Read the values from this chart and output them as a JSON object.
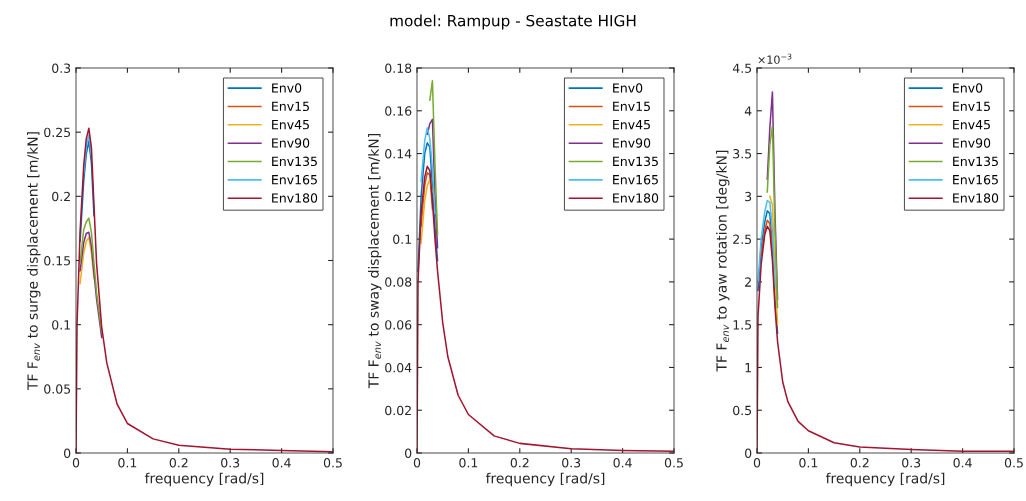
{
  "chart_data": [
    {
      "type": "line",
      "xlabel": "frequency [rad/s]",
      "ylabel": "TF F$_{env}$ to surge displacement [m/kN]",
      "legend": "top right",
      "grid": false,
      "x": [
        0,
        0.002,
        0.008,
        0.015,
        0.02,
        0.025,
        0.03,
        0.035,
        0.04,
        0.05,
        0.06,
        0.08,
        0.1,
        0.15,
        0.2,
        0.3,
        0.4,
        0.5
      ],
      "xlim": [
        0,
        0.5
      ],
      "xticks": [
        0,
        0.1,
        0.2,
        0.3,
        0.4,
        0.5
      ],
      "ylim": [
        0,
        0.3
      ],
      "yticks": [
        0,
        0.05,
        0.1,
        0.15,
        0.2,
        0.25,
        0.3
      ],
      "series": [
        {
          "name": "Env0",
          "color": "#0072bd",
          "values": [
            null,
            null,
            0.165,
            0.212,
            0.233,
            0.243,
            0.226,
            0.185,
            null,
            null,
            null,
            null,
            null,
            null,
            null,
            null,
            null,
            null
          ]
        },
        {
          "name": "Env15",
          "color": "#d95319",
          "values": [
            null,
            null,
            null,
            null,
            null,
            null,
            null,
            null,
            null,
            null,
            null,
            null,
            null,
            null,
            null,
            null,
            null,
            null
          ]
        },
        {
          "name": "Env45",
          "color": "#edb120",
          "values": [
            null,
            null,
            0.132,
            0.156,
            0.165,
            0.168,
            0.156,
            0.136,
            null,
            null,
            null,
            null,
            null,
            null,
            null,
            null,
            null,
            null
          ]
        },
        {
          "name": "Env90",
          "color": "#7e2f8e",
          "values": [
            null,
            null,
            0.142,
            0.164,
            0.171,
            0.172,
            0.161,
            0.14,
            0.12,
            0.09,
            null,
            null,
            null,
            null,
            null,
            null,
            null,
            null
          ]
        },
        {
          "name": "Env135",
          "color": "#77ac30",
          "values": [
            null,
            null,
            0.148,
            0.174,
            0.18,
            0.183,
            0.172,
            0.148,
            0.125,
            0.094,
            null,
            null,
            null,
            null,
            null,
            null,
            null,
            null
          ]
        },
        {
          "name": "Env165",
          "color": "#4dbeee",
          "values": [
            null,
            null,
            null,
            0.218,
            0.239,
            0.248,
            0.232,
            null,
            null,
            null,
            null,
            null,
            null,
            null,
            null,
            null,
            null,
            null
          ]
        },
        {
          "name": "Env180",
          "color": "#a2142f",
          "values": [
            0,
            0.1,
            0.173,
            0.224,
            0.245,
            0.253,
            0.238,
            0.193,
            0.148,
            0.098,
            0.07,
            0.038,
            0.023,
            0.011,
            0.006,
            0.003,
            0.002,
            0.001
          ]
        }
      ]
    },
    {
      "type": "line",
      "title": "model: Rampup - Seastate HIGH",
      "xlabel": "frequency [rad/s]",
      "ylabel": "TF F$_{env}$ to sway displacement [m/kN]",
      "legend": "top right",
      "grid": false,
      "x": [
        0,
        0.002,
        0.008,
        0.015,
        0.02,
        0.025,
        0.03,
        0.035,
        0.04,
        0.05,
        0.06,
        0.08,
        0.1,
        0.15,
        0.2,
        0.3,
        0.4,
        0.5
      ],
      "xlim": [
        0,
        0.5
      ],
      "xticks": [
        0,
        0.1,
        0.2,
        0.3,
        0.4,
        0.5
      ],
      "ylim": [
        0,
        0.18
      ],
      "yticks": [
        0,
        0.02,
        0.04,
        0.06,
        0.08,
        0.1,
        0.12,
        0.14,
        0.16,
        0.18
      ],
      "series": [
        {
          "name": "Env0",
          "color": "#0072bd",
          "values": [
            null,
            0.085,
            0.12,
            0.14,
            0.145,
            0.143,
            0.125,
            0.105,
            0.09,
            null,
            null,
            null,
            null,
            null,
            null,
            null,
            null,
            null
          ]
        },
        {
          "name": "Env15",
          "color": "#d95319",
          "values": [
            null,
            null,
            0.106,
            0.125,
            0.131,
            0.13,
            0.114,
            null,
            null,
            null,
            null,
            null,
            null,
            null,
            null,
            null,
            null,
            null
          ]
        },
        {
          "name": "Env45",
          "color": "#edb120",
          "values": [
            null,
            null,
            0.098,
            0.118,
            0.125,
            0.128,
            0.122,
            null,
            null,
            null,
            null,
            null,
            null,
            null,
            null,
            null,
            null,
            null
          ]
        },
        {
          "name": "Env90",
          "color": "#7e2f8e",
          "values": [
            null,
            null,
            null,
            null,
            0.149,
            0.154,
            0.156,
            0.12,
            0.096,
            null,
            null,
            null,
            null,
            null,
            null,
            null,
            null,
            null
          ]
        },
        {
          "name": "Env135",
          "color": "#77ac30",
          "values": [
            null,
            null,
            null,
            null,
            null,
            0.165,
            0.174,
            0.135,
            0.102,
            null,
            null,
            null,
            null,
            null,
            null,
            null,
            null,
            null
          ]
        },
        {
          "name": "Env165",
          "color": "#4dbeee",
          "values": [
            null,
            null,
            0.127,
            0.146,
            0.152,
            0.147,
            0.133,
            0.112,
            null,
            null,
            null,
            null,
            null,
            null,
            null,
            null,
            null,
            null
          ]
        },
        {
          "name": "Env180",
          "color": "#a2142f",
          "values": [
            0,
            0.08,
            0.112,
            0.129,
            0.134,
            0.132,
            0.118,
            0.1,
            0.085,
            0.061,
            0.045,
            0.027,
            0.018,
            0.008,
            0.0045,
            0.002,
            0.0012,
            0.0008
          ]
        }
      ]
    },
    {
      "type": "line",
      "xlabel": "frequency [rad/s]",
      "ylabel": "TF F$_{env}$ to yaw rotation [deg/kN]",
      "legend": "top right",
      "grid": false,
      "annotations": [
        "×10$^{−3}$"
      ],
      "x": [
        0,
        0.002,
        0.008,
        0.015,
        0.02,
        0.025,
        0.03,
        0.035,
        0.04,
        0.05,
        0.06,
        0.08,
        0.1,
        0.15,
        0.2,
        0.3,
        0.4,
        0.5
      ],
      "xlim": [
        0,
        0.5
      ],
      "xticks": [
        0,
        0.1,
        0.2,
        0.3,
        0.4,
        0.5
      ],
      "ylim": [
        0,
        4.5
      ],
      "yticks": [
        0,
        0.5,
        1,
        1.5,
        2,
        2.5,
        3,
        3.5,
        4,
        4.5
      ],
      "series": [
        {
          "name": "Env0",
          "color": "#0072bd",
          "values": [
            null,
            1.9,
            2.4,
            2.7,
            2.83,
            2.8,
            2.4,
            1.8,
            1.4,
            null,
            null,
            null,
            null,
            null,
            null,
            null,
            null,
            null
          ]
        },
        {
          "name": "Env15",
          "color": "#d95319",
          "values": [
            null,
            null,
            2.3,
            2.6,
            2.72,
            2.68,
            2.32,
            null,
            null,
            null,
            null,
            null,
            null,
            null,
            null,
            null,
            null,
            null
          ]
        },
        {
          "name": "Env45",
          "color": "#edb120",
          "values": [
            null,
            null,
            null,
            null,
            null,
            3.0,
            2.9,
            2.1,
            1.5,
            null,
            null,
            null,
            null,
            null,
            null,
            null,
            null,
            null
          ]
        },
        {
          "name": "Env90",
          "color": "#7e2f8e",
          "values": [
            null,
            null,
            null,
            null,
            3.2,
            3.8,
            4.22,
            2.8,
            1.8,
            null,
            null,
            null,
            null,
            null,
            null,
            null,
            null,
            null
          ]
        },
        {
          "name": "Env135",
          "color": "#77ac30",
          "values": [
            null,
            null,
            null,
            null,
            3.05,
            3.6,
            3.82,
            2.6,
            1.7,
            null,
            null,
            null,
            null,
            null,
            null,
            null,
            null,
            null
          ]
        },
        {
          "name": "Env165",
          "color": "#4dbeee",
          "values": [
            null,
            2.0,
            2.5,
            2.82,
            2.95,
            2.93,
            2.6,
            1.95,
            null,
            null,
            null,
            null,
            null,
            null,
            null,
            null,
            null,
            null
          ]
        },
        {
          "name": "Env180",
          "color": "#a2142f",
          "values": [
            0,
            1.6,
            2.2,
            2.55,
            2.65,
            2.6,
            2.25,
            1.7,
            1.3,
            0.83,
            0.6,
            0.37,
            0.26,
            0.12,
            0.07,
            0.04,
            0.02,
            0.02
          ]
        }
      ]
    }
  ]
}
